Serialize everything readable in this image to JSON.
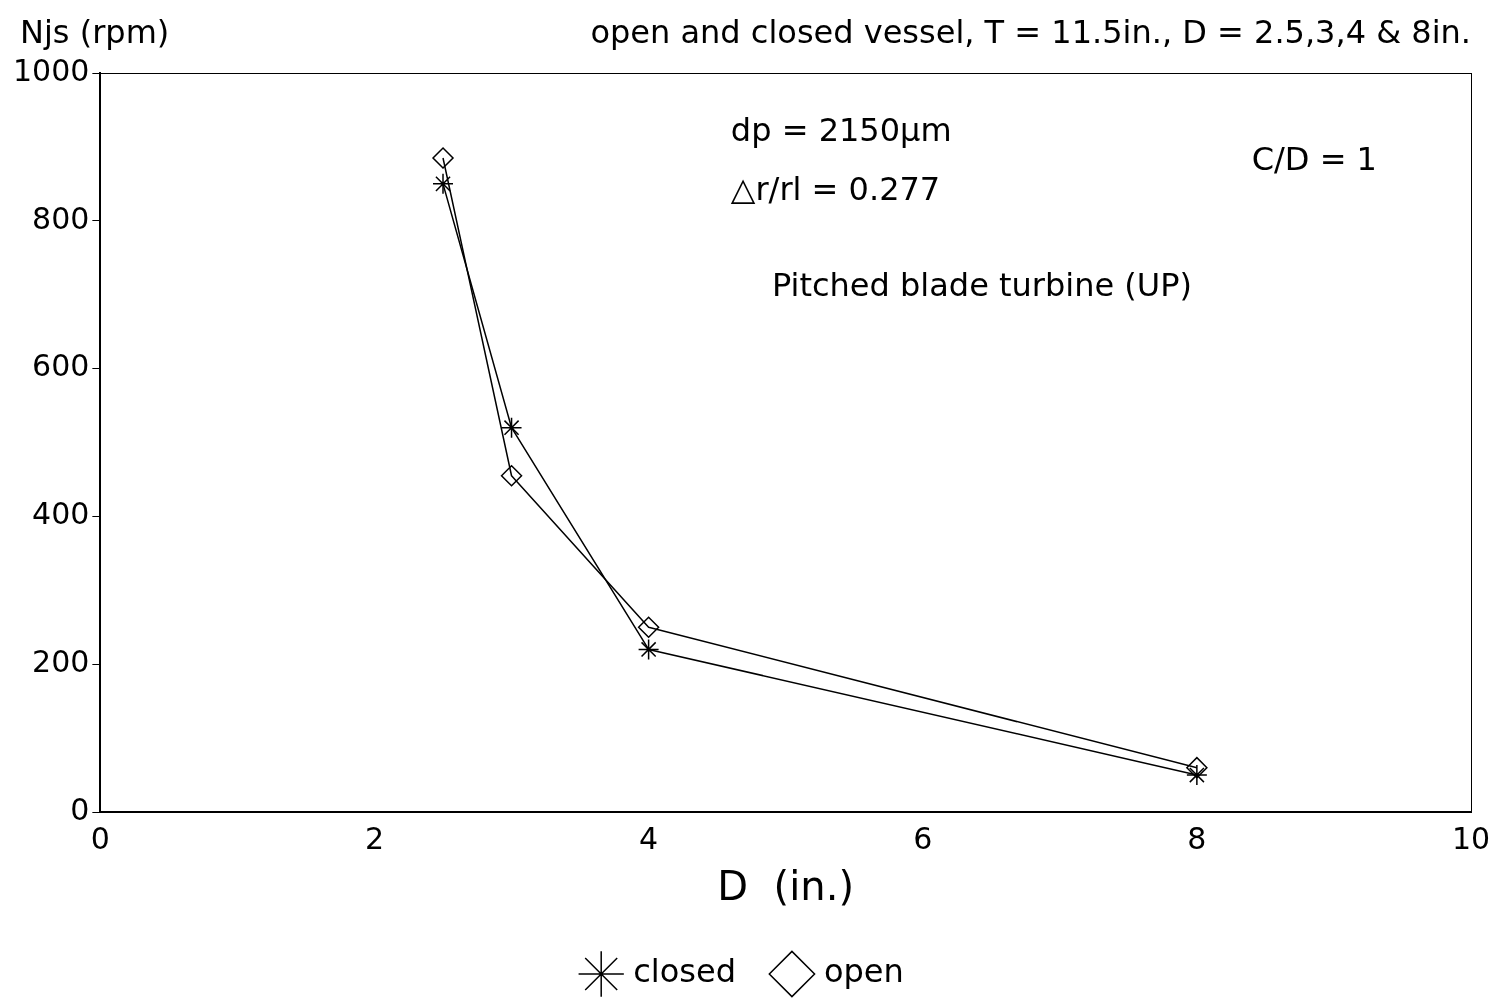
{
  "chart_data": {
    "type": "line",
    "title": "open and closed vessel, T = 11.5in., D = 2.5,3,4 & 8in.",
    "ylabel": "Njs (rpm)",
    "xlabel": "D  (in.)",
    "annotations": [
      "dp = 2150μm",
      "△r/rl = 0.277",
      "C/D = 1",
      "Pitched blade turbine (UP)"
    ],
    "x": [
      2.5,
      3,
      4,
      8
    ],
    "series": [
      {
        "name": "closed",
        "color": "#000000",
        "marker": "cross",
        "values": [
          850,
          520,
          220,
          50
        ]
      },
      {
        "name": "open",
        "color": "#000000",
        "marker": "diamond",
        "values": [
          885,
          455,
          250,
          60
        ]
      }
    ],
    "xlim": [
      0,
      10
    ],
    "xticks": [
      0,
      2,
      4,
      6,
      8,
      10
    ],
    "ylim": [
      0,
      1000
    ],
    "yticks": [
      0,
      200,
      400,
      600,
      800,
      1000
    ],
    "grid": false,
    "legend": "bottom",
    "line_style": "solid"
  }
}
